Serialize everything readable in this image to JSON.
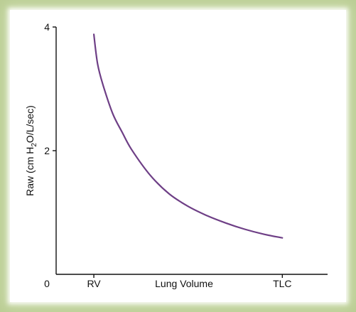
{
  "chart_data": {
    "type": "line",
    "title": "",
    "xlabel": "Lung Volume",
    "ylabel_parts": {
      "prefix": "Raw (cm H",
      "subscript": "2",
      "suffix": "O/L/sec)"
    },
    "x_axis": {
      "origin_label": "0",
      "categories": [
        {
          "label": "RV",
          "x": 0
        },
        {
          "label": "TLC",
          "x": 1
        }
      ],
      "xlim": [
        -0.2,
        1.24
      ]
    },
    "y_axis": {
      "ylim": [
        0,
        4
      ],
      "ticks": [
        2,
        4
      ],
      "tick_labels": [
        "2",
        "4"
      ]
    },
    "series": [
      {
        "color": "#6e3f86",
        "points": [
          {
            "x": 0.0,
            "y": 3.88
          },
          {
            "x": 0.02,
            "y": 3.4
          },
          {
            "x": 0.05,
            "y": 3.05
          },
          {
            "x": 0.1,
            "y": 2.6
          },
          {
            "x": 0.15,
            "y": 2.3
          },
          {
            "x": 0.2,
            "y": 2.02
          },
          {
            "x": 0.3,
            "y": 1.6
          },
          {
            "x": 0.4,
            "y": 1.3
          },
          {
            "x": 0.5,
            "y": 1.1
          },
          {
            "x": 0.6,
            "y": 0.95
          },
          {
            "x": 0.7,
            "y": 0.83
          },
          {
            "x": 0.8,
            "y": 0.73
          },
          {
            "x": 0.9,
            "y": 0.65
          },
          {
            "x": 1.0,
            "y": 0.59
          }
        ]
      }
    ]
  }
}
